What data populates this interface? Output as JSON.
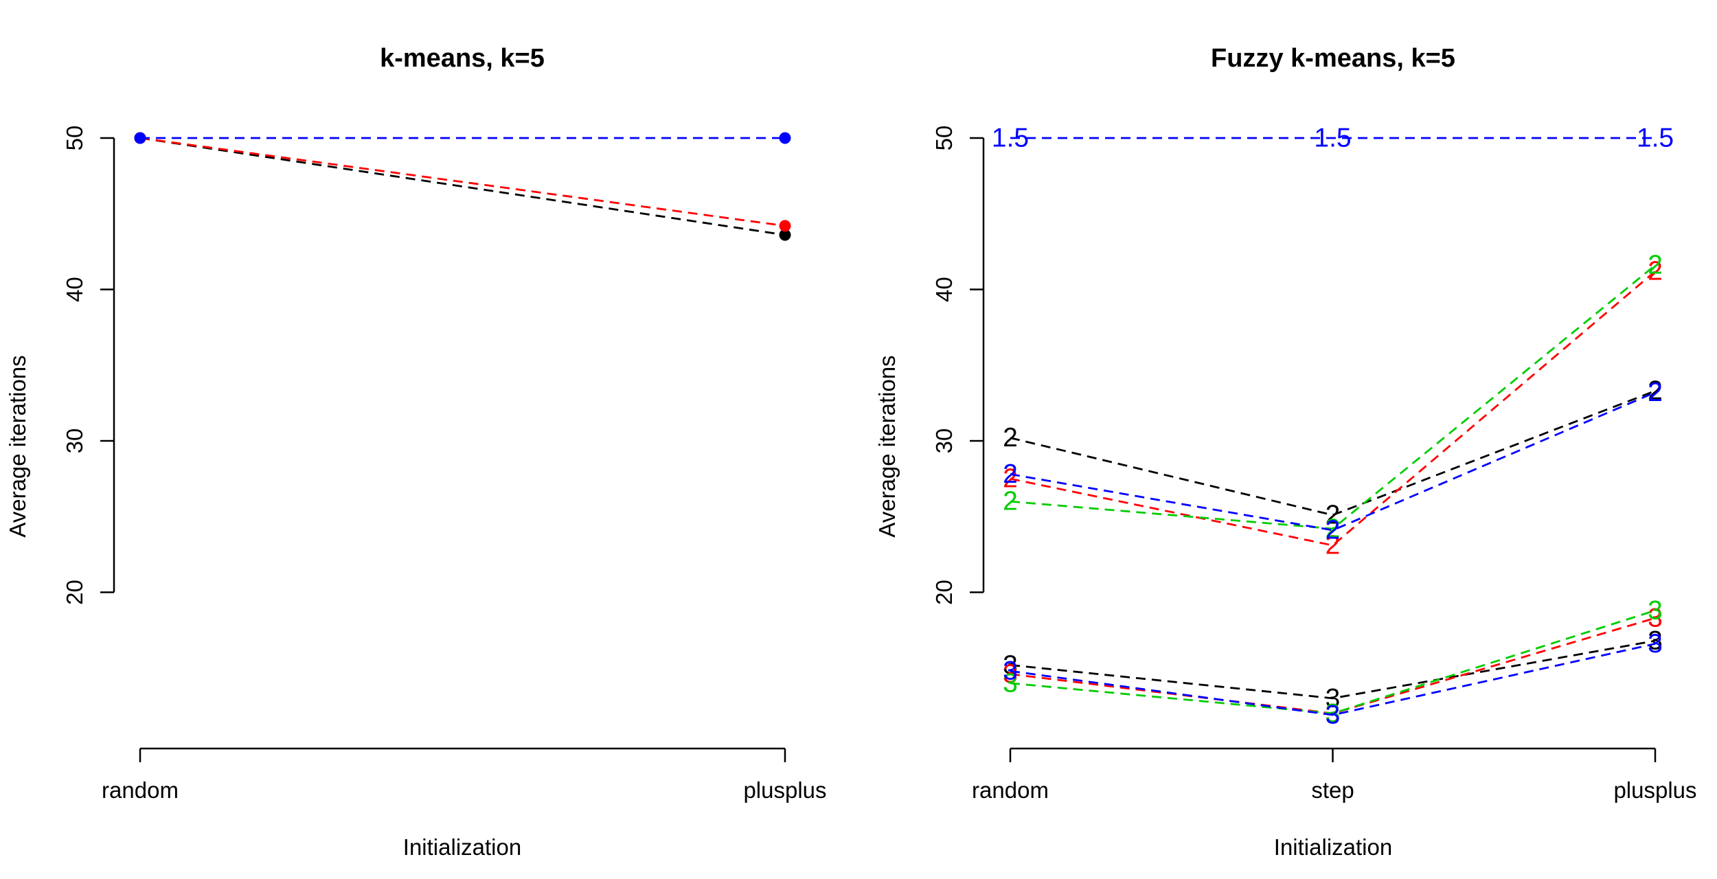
{
  "chart_data": [
    {
      "type": "line",
      "title": "k-means, k=5",
      "xlabel": "Initialization",
      "ylabel": "Average iterations",
      "categories": [
        "random",
        "plusplus"
      ],
      "ylim": [
        10.5,
        50
      ],
      "yticks": [
        20,
        30,
        40,
        50
      ],
      "markers": "points",
      "series": [
        {
          "color": "#000000",
          "values": [
            50,
            43.6
          ]
        },
        {
          "color": "#ff0000",
          "values": [
            50,
            44.2
          ]
        },
        {
          "color": "#0000ff",
          "values": [
            50,
            50
          ]
        }
      ]
    },
    {
      "type": "line",
      "title": "Fuzzy k-means, k=5",
      "xlabel": "Initialization",
      "ylabel": "Average iterations",
      "categories": [
        "random",
        "step",
        "plusplus"
      ],
      "ylim": [
        10.5,
        50
      ],
      "yticks": [
        20,
        30,
        40,
        50
      ],
      "markers": "labels",
      "series": [
        {
          "color": "#0000ff",
          "label": "1.5",
          "values": [
            50,
            50,
            50
          ]
        },
        {
          "color": "#000000",
          "label": "2",
          "values": [
            30.2,
            25.1,
            33.3
          ]
        },
        {
          "color": "#ff0000",
          "label": "2",
          "values": [
            27.5,
            23.1,
            41.2
          ]
        },
        {
          "color": "#00cc00",
          "label": "2",
          "values": [
            26.0,
            24.2,
            41.6
          ]
        },
        {
          "color": "#0000ff",
          "label": "2",
          "values": [
            27.8,
            24.1,
            33.2
          ]
        },
        {
          "color": "#000000",
          "label": "3",
          "values": [
            15.2,
            13.0,
            16.8
          ]
        },
        {
          "color": "#ff0000",
          "label": "3",
          "values": [
            14.6,
            12.0,
            18.3
          ]
        },
        {
          "color": "#00cc00",
          "label": "3",
          "values": [
            14.0,
            12.0,
            18.8
          ]
        },
        {
          "color": "#0000ff",
          "label": "3",
          "values": [
            14.8,
            11.9,
            16.6
          ]
        }
      ]
    }
  ]
}
